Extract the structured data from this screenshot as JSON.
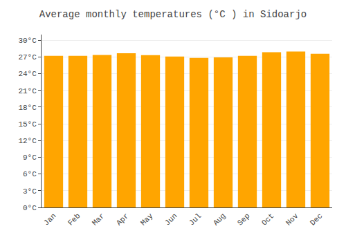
{
  "chart_data": {
    "type": "bar",
    "title": "Average monthly temperatures (°C ) in Sidoarjo",
    "categories": [
      "Jan",
      "Feb",
      "Mar",
      "Apr",
      "May",
      "Jun",
      "Jul",
      "Aug",
      "Sep",
      "Oct",
      "Nov",
      "Dec"
    ],
    "values": [
      27.2,
      27.2,
      27.35,
      27.65,
      27.3,
      27.05,
      26.8,
      26.9,
      27.2,
      27.85,
      27.95,
      27.55
    ],
    "color": "#FFA500",
    "ylim": [
      0,
      31
    ],
    "yticks": [
      {
        "value": 0,
        "label": "0°C"
      },
      {
        "value": 3,
        "label": "3°C"
      },
      {
        "value": 6,
        "label": "6°C"
      },
      {
        "value": 9,
        "label": "9°C"
      },
      {
        "value": 12,
        "label": "12°C"
      },
      {
        "value": 15,
        "label": "15°C"
      },
      {
        "value": 18,
        "label": "18°C"
      },
      {
        "value": 21,
        "label": "21°C"
      },
      {
        "value": 24,
        "label": "24°C"
      },
      {
        "value": 27,
        "label": "27°C"
      },
      {
        "value": 30,
        "label": "30°C"
      }
    ],
    "grid": true
  }
}
